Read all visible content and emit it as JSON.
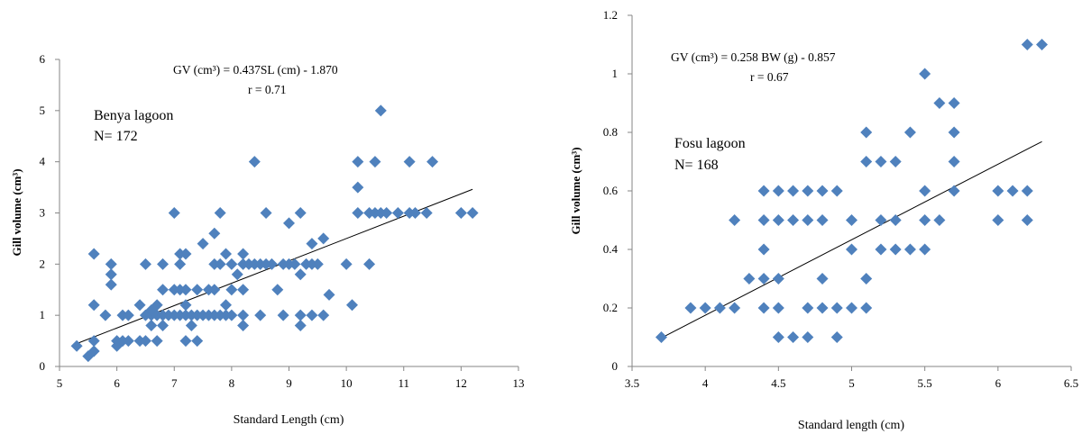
{
  "caption_fragment": "",
  "chart_data": [
    {
      "type": "scatter",
      "xlabel": "Standard Length (cm)",
      "ylabel": "Gill volume (cm³)",
      "xlim": [
        5,
        13
      ],
      "ylim": [
        0,
        6
      ],
      "xticks": [
        "5",
        "6",
        "7",
        "8",
        "9",
        "10",
        "11",
        "12",
        "13"
      ],
      "yticks": [
        "0",
        "1",
        "2",
        "3",
        "4",
        "5",
        "6"
      ],
      "equation": "GV (cm³) = 0.437SL (cm) - 1.870",
      "r_text": "r = 0.71",
      "site": "Benya lagoon",
      "n_text": "N= 172",
      "trendline": {
        "slope": 0.437,
        "intercept": -1.87,
        "x_start": 5.3,
        "x_end": 12.2
      },
      "marker_color": "#4f81bd",
      "points": [
        [
          5.3,
          0.4
        ],
        [
          5.5,
          0.2
        ],
        [
          5.6,
          0.3
        ],
        [
          5.6,
          0.5
        ],
        [
          5.6,
          1.2
        ],
        [
          5.6,
          2.2
        ],
        [
          5.8,
          1.0
        ],
        [
          5.9,
          1.6
        ],
        [
          5.9,
          1.8
        ],
        [
          5.9,
          2.0
        ],
        [
          6.0,
          0.4
        ],
        [
          6.0,
          0.5
        ],
        [
          6.1,
          0.5
        ],
        [
          6.1,
          1.0
        ],
        [
          6.2,
          0.5
        ],
        [
          6.2,
          1.0
        ],
        [
          6.4,
          0.5
        ],
        [
          6.4,
          1.2
        ],
        [
          6.5,
          0.5
        ],
        [
          6.5,
          1.0
        ],
        [
          6.5,
          2.0
        ],
        [
          6.6,
          0.8
        ],
        [
          6.6,
          1.0
        ],
        [
          6.6,
          1.1
        ],
        [
          6.7,
          0.5
        ],
        [
          6.7,
          1.0
        ],
        [
          6.7,
          1.2
        ],
        [
          6.8,
          0.8
        ],
        [
          6.8,
          1.0
        ],
        [
          6.8,
          1.5
        ],
        [
          6.8,
          2.0
        ],
        [
          6.9,
          1.0
        ],
        [
          7.0,
          1.0
        ],
        [
          7.0,
          1.5
        ],
        [
          7.0,
          3.0
        ],
        [
          7.1,
          1.0
        ],
        [
          7.1,
          1.5
        ],
        [
          7.1,
          2.0
        ],
        [
          7.1,
          2.2
        ],
        [
          7.2,
          0.5
        ],
        [
          7.2,
          1.0
        ],
        [
          7.2,
          1.2
        ],
        [
          7.2,
          1.5
        ],
        [
          7.2,
          2.2
        ],
        [
          7.3,
          0.8
        ],
        [
          7.3,
          1.0
        ],
        [
          7.4,
          0.5
        ],
        [
          7.4,
          1.0
        ],
        [
          7.4,
          1.5
        ],
        [
          7.5,
          1.0
        ],
        [
          7.5,
          2.4
        ],
        [
          7.6,
          1.0
        ],
        [
          7.6,
          1.5
        ],
        [
          7.7,
          1.0
        ],
        [
          7.7,
          1.5
        ],
        [
          7.7,
          2.0
        ],
        [
          7.7,
          2.6
        ],
        [
          7.8,
          1.0
        ],
        [
          7.8,
          2.0
        ],
        [
          7.8,
          3.0
        ],
        [
          7.9,
          1.0
        ],
        [
          7.9,
          1.2
        ],
        [
          7.9,
          2.2
        ],
        [
          8.0,
          1.0
        ],
        [
          8.0,
          1.5
        ],
        [
          8.0,
          2.0
        ],
        [
          8.1,
          1.8
        ],
        [
          8.2,
          0.8
        ],
        [
          8.2,
          1.0
        ],
        [
          8.2,
          1.5
        ],
        [
          8.2,
          2.0
        ],
        [
          8.2,
          2.2
        ],
        [
          8.3,
          2.0
        ],
        [
          8.4,
          2.0
        ],
        [
          8.4,
          4.0
        ],
        [
          8.5,
          1.0
        ],
        [
          8.5,
          2.0
        ],
        [
          8.6,
          2.0
        ],
        [
          8.6,
          3.0
        ],
        [
          8.7,
          2.0
        ],
        [
          8.8,
          1.5
        ],
        [
          8.9,
          1.0
        ],
        [
          8.9,
          2.0
        ],
        [
          9.0,
          2.0
        ],
        [
          9.0,
          2.8
        ],
        [
          9.1,
          2.0
        ],
        [
          9.2,
          0.8
        ],
        [
          9.2,
          1.0
        ],
        [
          9.2,
          1.8
        ],
        [
          9.2,
          3.0
        ],
        [
          9.3,
          2.0
        ],
        [
          9.4,
          1.0
        ],
        [
          9.4,
          2.0
        ],
        [
          9.4,
          2.4
        ],
        [
          9.5,
          2.0
        ],
        [
          9.6,
          1.0
        ],
        [
          9.6,
          2.5
        ],
        [
          9.7,
          1.4
        ],
        [
          10.0,
          2.0
        ],
        [
          10.1,
          1.2
        ],
        [
          10.2,
          3.0
        ],
        [
          10.2,
          3.5
        ],
        [
          10.2,
          4.0
        ],
        [
          10.4,
          2.0
        ],
        [
          10.4,
          3.0
        ],
        [
          10.5,
          3.0
        ],
        [
          10.5,
          4.0
        ],
        [
          10.6,
          3.0
        ],
        [
          10.6,
          5.0
        ],
        [
          10.7,
          3.0
        ],
        [
          10.9,
          3.0
        ],
        [
          11.1,
          3.0
        ],
        [
          11.1,
          4.0
        ],
        [
          11.2,
          3.0
        ],
        [
          11.4,
          3.0
        ],
        [
          11.5,
          4.0
        ],
        [
          12.0,
          3.0
        ],
        [
          12.2,
          3.0
        ]
      ]
    },
    {
      "type": "scatter",
      "xlabel": "Standard length (cm)",
      "ylabel": "Gill volume (cm³)",
      "xlim": [
        3.5,
        6.5
      ],
      "ylim": [
        0,
        1.2
      ],
      "xticks": [
        "3.5",
        "4",
        "4.5",
        "5",
        "5.5",
        "6",
        "6.5"
      ],
      "yticks": [
        "0",
        "0.2",
        "0.4",
        "0.6",
        "0.8",
        "1",
        "1.2"
      ],
      "equation": "GV (cm³) = 0.258 BW (g) - 0.857",
      "r_text": "r = 0.67",
      "site": "Fosu lagoon",
      "n_text": "N= 168",
      "trendline": {
        "slope": 0.258,
        "intercept": -0.857,
        "x_start": 3.7,
        "x_end": 6.3
      },
      "marker_color": "#4f81bd",
      "points": [
        [
          3.7,
          0.1
        ],
        [
          3.9,
          0.2
        ],
        [
          4.0,
          0.2
        ],
        [
          4.1,
          0.2
        ],
        [
          4.2,
          0.2
        ],
        [
          4.2,
          0.5
        ],
        [
          4.3,
          0.3
        ],
        [
          4.4,
          0.2
        ],
        [
          4.4,
          0.3
        ],
        [
          4.4,
          0.4
        ],
        [
          4.4,
          0.5
        ],
        [
          4.4,
          0.6
        ],
        [
          4.5,
          0.1
        ],
        [
          4.5,
          0.2
        ],
        [
          4.5,
          0.3
        ],
        [
          4.5,
          0.5
        ],
        [
          4.5,
          0.6
        ],
        [
          4.6,
          0.1
        ],
        [
          4.6,
          0.5
        ],
        [
          4.6,
          0.6
        ],
        [
          4.7,
          0.1
        ],
        [
          4.7,
          0.2
        ],
        [
          4.7,
          0.5
        ],
        [
          4.7,
          0.6
        ],
        [
          4.8,
          0.2
        ],
        [
          4.8,
          0.3
        ],
        [
          4.8,
          0.5
        ],
        [
          4.8,
          0.6
        ],
        [
          4.9,
          0.1
        ],
        [
          4.9,
          0.2
        ],
        [
          4.9,
          0.6
        ],
        [
          5.0,
          0.2
        ],
        [
          5.0,
          0.4
        ],
        [
          5.0,
          0.5
        ],
        [
          5.1,
          0.2
        ],
        [
          5.1,
          0.3
        ],
        [
          5.1,
          0.7
        ],
        [
          5.1,
          0.8
        ],
        [
          5.2,
          0.4
        ],
        [
          5.2,
          0.5
        ],
        [
          5.2,
          0.7
        ],
        [
          5.3,
          0.4
        ],
        [
          5.3,
          0.5
        ],
        [
          5.3,
          0.7
        ],
        [
          5.4,
          0.4
        ],
        [
          5.4,
          0.8
        ],
        [
          5.5,
          0.4
        ],
        [
          5.5,
          0.5
        ],
        [
          5.5,
          0.6
        ],
        [
          5.5,
          1.0
        ],
        [
          5.6,
          0.5
        ],
        [
          5.6,
          0.9
        ],
        [
          5.7,
          0.6
        ],
        [
          5.7,
          0.7
        ],
        [
          5.7,
          0.8
        ],
        [
          5.7,
          0.9
        ],
        [
          6.0,
          0.5
        ],
        [
          6.0,
          0.6
        ],
        [
          6.1,
          0.6
        ],
        [
          6.2,
          0.5
        ],
        [
          6.2,
          0.6
        ],
        [
          6.2,
          1.1
        ],
        [
          6.3,
          1.1
        ]
      ]
    }
  ]
}
